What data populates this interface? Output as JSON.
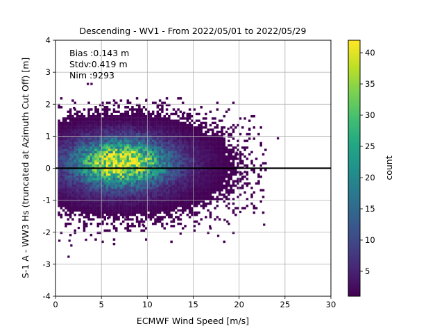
{
  "chart_data": {
    "type": "heatmap",
    "title": "Descending - WV1 - From 2022/05/01 to 2022/05/29",
    "xlabel": "ECMWF Wind Speed [m/s]",
    "ylabel": "S-1 A - WW3 Hs (truncated at Azimuth Cut Off) [m]",
    "xlim": [
      0,
      30
    ],
    "ylim": [
      -4,
      4
    ],
    "xticks": [
      "0",
      "5",
      "10",
      "15",
      "20",
      "25",
      "30"
    ],
    "yticks": [
      "-4",
      "-3",
      "-2",
      "-1",
      "0",
      "1",
      "2",
      "3",
      "4"
    ],
    "grid": true,
    "colormap": "viridis",
    "colorbar": {
      "label": "count",
      "range": [
        1,
        42
      ],
      "ticks": [
        "5",
        "10",
        "15",
        "20",
        "25",
        "30",
        "35",
        "40"
      ]
    },
    "reference_line_y": 0,
    "density_peak": {
      "x": 7,
      "y": 0.15,
      "count": 42
    },
    "outliers": [
      {
        "x": 1.3,
        "y": -2.8
      },
      {
        "x": 0.3,
        "y": -2.3
      },
      {
        "x": 1.6,
        "y": -2.45
      },
      {
        "x": 1.4,
        "y": -2.3
      },
      {
        "x": 3.2,
        "y": -2.27
      },
      {
        "x": 2.4,
        "y": -1.9
      },
      {
        "x": 3.4,
        "y": 2.6
      },
      {
        "x": 3.8,
        "y": 2.6
      },
      {
        "x": 9.8,
        "y": 2.1
      },
      {
        "x": 1.9,
        "y": 1.85
      },
      {
        "x": 3.8,
        "y": 1.8
      },
      {
        "x": 6.4,
        "y": 2.0
      },
      {
        "x": 24.1,
        "y": 0.9
      },
      {
        "x": 21.0,
        "y": 1.2
      },
      {
        "x": 22.6,
        "y": -1.8
      },
      {
        "x": 20.0,
        "y": -1.4
      },
      {
        "x": 18.6,
        "y": -1.7
      },
      {
        "x": 18.3,
        "y": -1.65
      },
      {
        "x": 17.6,
        "y": -2.15
      },
      {
        "x": 16.7,
        "y": -1.85
      },
      {
        "x": 13.5,
        "y": -2.08
      },
      {
        "x": 7.6,
        "y": -1.55
      },
      {
        "x": 5.6,
        "y": -1.6
      },
      {
        "x": 9.4,
        "y": -1.8
      },
      {
        "x": 19.6,
        "y": 0.45
      },
      {
        "x": 20.2,
        "y": -0.2
      },
      {
        "x": 20.5,
        "y": -0.15
      },
      {
        "x": 13.9,
        "y": 1.7
      },
      {
        "x": 18.0,
        "y": 1.45
      },
      {
        "x": 18.7,
        "y": 1.2
      }
    ],
    "annotations": [
      "Bias :0.143 m",
      "Stdv:0.419 m",
      "Nim :9293"
    ]
  }
}
